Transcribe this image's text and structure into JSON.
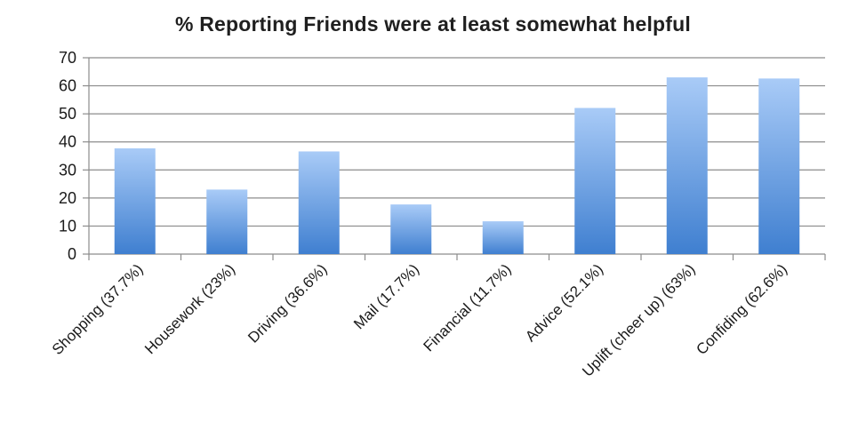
{
  "chart_data": {
    "type": "bar",
    "title": "% Reporting Friends were at least somewhat helpful",
    "xlabel": "",
    "ylabel": "",
    "categories": [
      "Shopping (37.7%)",
      "Housework (23%)",
      "Driving (36.6%)",
      "Mail (17.7%)",
      "Financial (11.7%)",
      "Advice (52.1%)",
      "Uplift (cheer up) (63%)",
      "Confiding (62.6%)"
    ],
    "values": [
      37.7,
      23,
      36.6,
      17.7,
      11.7,
      52.1,
      63,
      62.6
    ],
    "ylim": [
      0,
      70
    ],
    "yticks": [
      0,
      10,
      20,
      30,
      40,
      50,
      60,
      70
    ],
    "grid": true,
    "legend": "none",
    "colors": {
      "bar_top": "#a9cbf7",
      "bar_bottom": "#3f7fd0",
      "grid": "#8c8c8c",
      "axis": "#8c8c8c"
    }
  }
}
